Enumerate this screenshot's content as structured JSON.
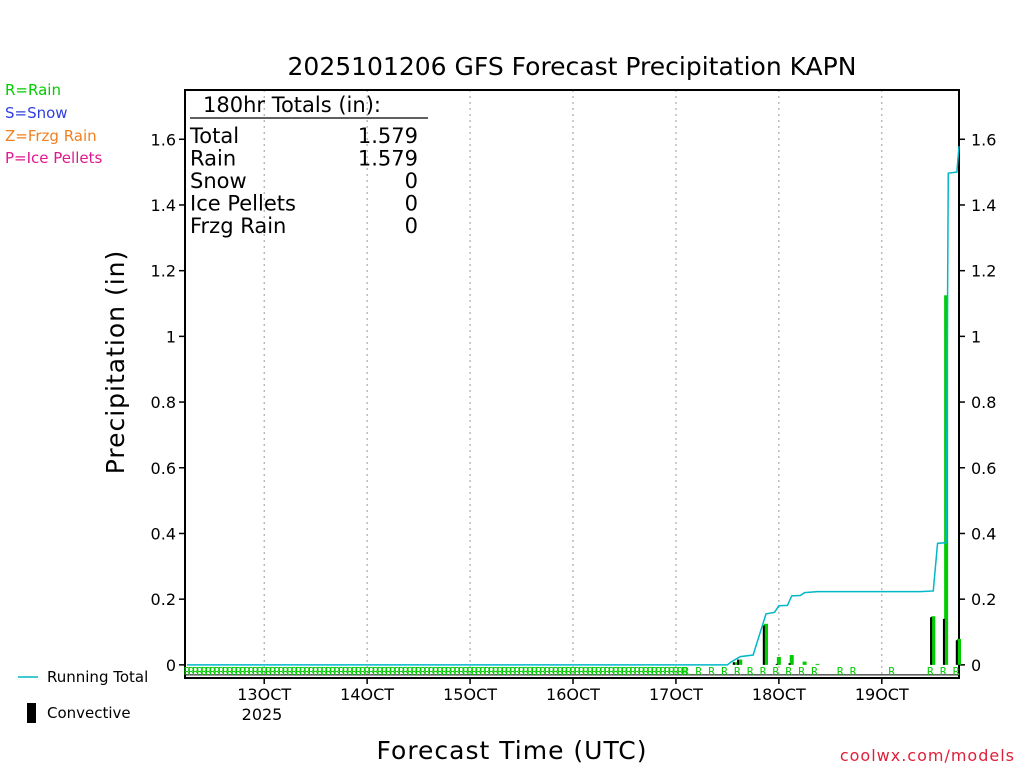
{
  "chart_data": {
    "type": "bar",
    "title": "2025101206 GFS Forecast Precipitation KAPN",
    "xlabel": "Forecast Time (UTC)",
    "ylabel": "Precipitation (in)",
    "ylim": [
      -0.04,
      1.75
    ],
    "xlim_hours": [
      0,
      180
    ],
    "y_ticks": [
      "0",
      "0.2",
      "0.4",
      "0.6",
      "0.8",
      "1",
      "1.2",
      "1.4",
      "1.6"
    ],
    "y_tick_values": [
      0,
      0.2,
      0.4,
      0.6,
      0.8,
      1.0,
      1.2,
      1.4,
      1.6
    ],
    "x_ticks": [
      {
        "hour": 18,
        "label": "13OCT"
      },
      {
        "hour": 42,
        "label": "14OCT"
      },
      {
        "hour": 66,
        "label": "15OCT"
      },
      {
        "hour": 90,
        "label": "16OCT"
      },
      {
        "hour": 114,
        "label": "17OCT"
      },
      {
        "hour": 138,
        "label": "18OCT"
      },
      {
        "hour": 162,
        "label": "19OCT"
      }
    ],
    "year_label": "2025",
    "legend": {
      "rain": "R=Rain",
      "snow": "S=Snow",
      "frzg": "Z=Frzg Rain",
      "pellets": "P=Ice Pellets",
      "running": "Running Total",
      "convective": "Convective"
    },
    "colors": {
      "rain": "#00cc00",
      "snow": "#3040e0",
      "frzg": "#f08020",
      "pellets": "#e01890",
      "running": "#00b8c8",
      "convective": "#000000"
    },
    "totals": {
      "header": "180hr Totals (in):",
      "rows": [
        {
          "label": "Total",
          "value": "1.579"
        },
        {
          "label": "Rain",
          "value": "1.579"
        },
        {
          "label": "Snow",
          "value": "0"
        },
        {
          "label": "Ice Pellets",
          "value": "0"
        },
        {
          "label": "Frzg Rain",
          "value": "0"
        }
      ]
    },
    "ptype_symbol": "R",
    "bars": [
      {
        "hour": 128,
        "total": 0.008,
        "convective": 0.008
      },
      {
        "hour": 129,
        "total": 0.016,
        "convective": 0.016
      },
      {
        "hour": 135,
        "total": 0.125,
        "convective": 0.12
      },
      {
        "hour": 138,
        "total": 0.024,
        "convective": 0.003
      },
      {
        "hour": 141,
        "total": 0.03,
        "convective": 0.005
      },
      {
        "hour": 144,
        "total": 0.01,
        "convective": 0.0
      },
      {
        "hour": 147,
        "total": 0.003,
        "convective": 0.0
      },
      {
        "hour": 174,
        "total": 0.148,
        "convective": 0.145
      },
      {
        "hour": 177,
        "total": 1.125,
        "convective": 0.14
      },
      {
        "hour": 180,
        "total": 0.079,
        "convective": 0.075
      }
    ],
    "running_total": [
      {
        "hour": 0,
        "value": 0
      },
      {
        "hour": 126,
        "value": 0
      },
      {
        "hour": 127,
        "value": 0.01
      },
      {
        "hour": 129,
        "value": 0.025
      },
      {
        "hour": 132,
        "value": 0.03
      },
      {
        "hour": 135,
        "value": 0.155
      },
      {
        "hour": 137,
        "value": 0.16
      },
      {
        "hour": 138,
        "value": 0.18
      },
      {
        "hour": 140,
        "value": 0.181
      },
      {
        "hour": 141,
        "value": 0.21
      },
      {
        "hour": 143,
        "value": 0.211
      },
      {
        "hour": 144,
        "value": 0.22
      },
      {
        "hour": 147,
        "value": 0.223
      },
      {
        "hour": 171,
        "value": 0.223
      },
      {
        "hour": 174,
        "value": 0.225
      },
      {
        "hour": 175,
        "value": 0.37
      },
      {
        "hour": 177,
        "value": 0.372
      },
      {
        "hour": 177.5,
        "value": 1.497
      },
      {
        "hour": 179.5,
        "value": 1.5
      },
      {
        "hour": 180,
        "value": 1.579
      }
    ],
    "ptype_markers": {
      "dense_hours": [
        0,
        6,
        12,
        18,
        24,
        30,
        36,
        42,
        48,
        54,
        60,
        66,
        72,
        78,
        84,
        90,
        96,
        102,
        108,
        114
      ],
      "sparse_hours": [
        117,
        120,
        123,
        126,
        129,
        132,
        135,
        138,
        141,
        144,
        147,
        153,
        156,
        165,
        174,
        177,
        180
      ]
    }
  },
  "credit": "coolwx.com/models"
}
